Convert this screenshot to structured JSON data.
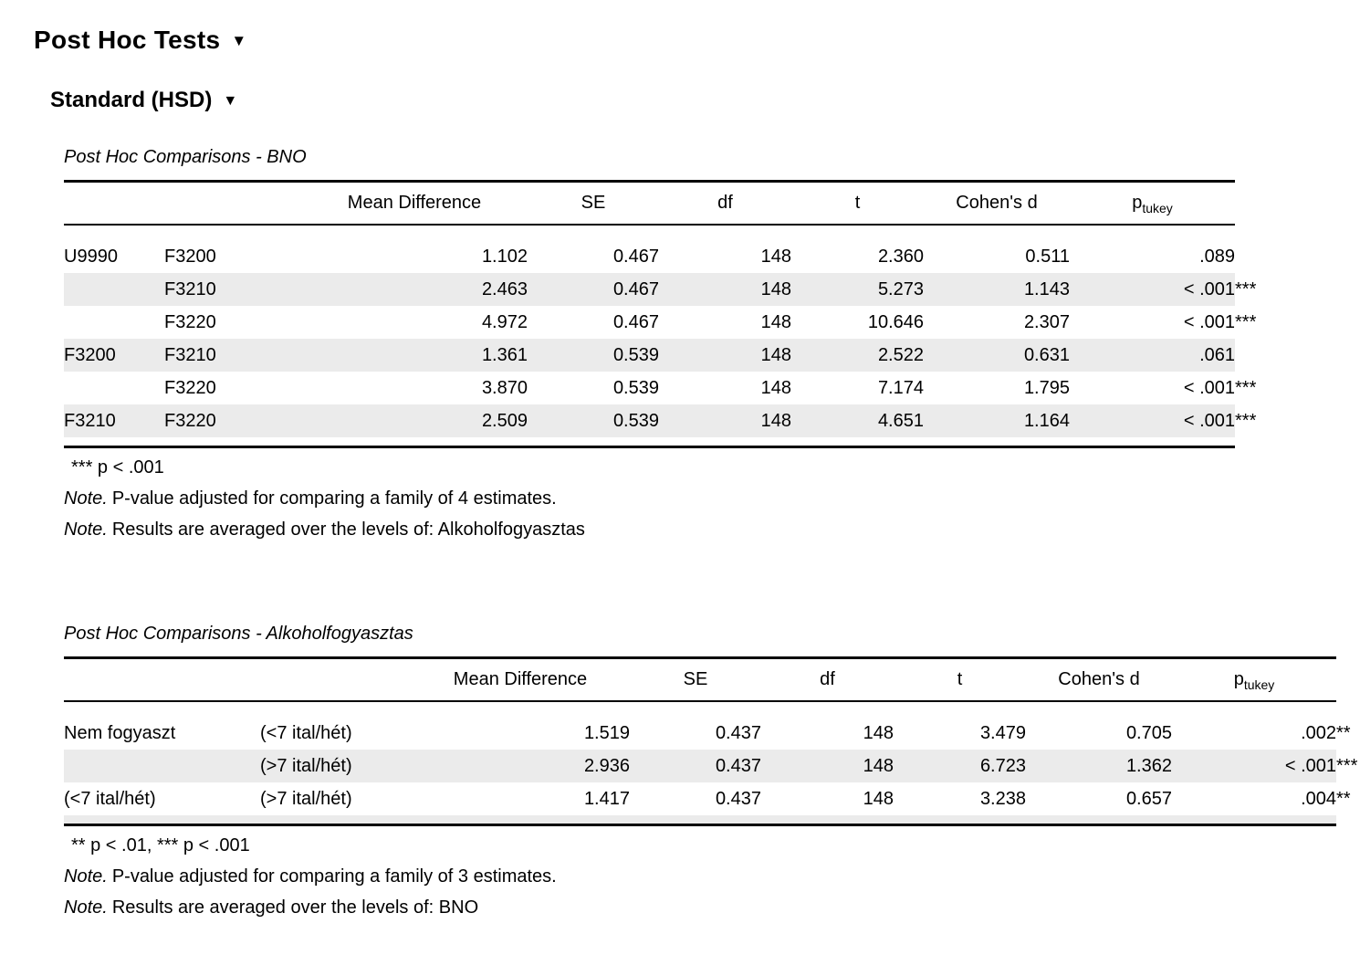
{
  "ui": {
    "caret": "▼"
  },
  "header": {
    "title": "Post Hoc Tests",
    "subtitle": "Standard (HSD)"
  },
  "colors": {
    "zebra_row": "#ebebeb",
    "text": "#000000",
    "border": "#000000"
  },
  "tables": [
    {
      "title": "Post Hoc Comparisons - BNO",
      "columns": [
        "",
        "",
        "Mean Difference",
        "SE",
        "df",
        "t",
        "Cohen's d",
        {
          "text": "p",
          "sub": "tukey"
        }
      ],
      "rows": [
        [
          "U9990",
          "F3200",
          "1.102",
          "0.467",
          "148",
          "2.360",
          "0.511",
          ".089"
        ],
        [
          "",
          "F3210",
          "2.463",
          "0.467",
          "148",
          "5.273",
          "1.143",
          "< .001***"
        ],
        [
          "",
          "F3220",
          "4.972",
          "0.467",
          "148",
          "10.646",
          "2.307",
          "< .001***"
        ],
        [
          "F3200",
          "F3210",
          "1.361",
          "0.539",
          "148",
          "2.522",
          "0.631",
          ".061"
        ],
        [
          "",
          "F3220",
          "3.870",
          "0.539",
          "148",
          "7.174",
          "1.795",
          "< .001***"
        ],
        [
          "F3210",
          "F3220",
          "2.509",
          "0.539",
          "148",
          "4.651",
          "1.164",
          "< .001***"
        ]
      ],
      "sig_note": "*** p < .001",
      "notes": [
        {
          "label": "Note.",
          "text": "P-value adjusted for comparing a family of 4 estimates."
        },
        {
          "label": "Note.",
          "text": "Results are averaged over the levels of: Alkoholfogyasztas"
        }
      ]
    },
    {
      "title": "Post Hoc Comparisons - Alkoholfogyasztas",
      "columns": [
        "",
        "",
        "Mean Difference",
        "SE",
        "df",
        "t",
        "Cohen's d",
        {
          "text": "p",
          "sub": "tukey"
        }
      ],
      "rows": [
        [
          "Nem fogyaszt",
          "(<7 ital/hét)",
          "1.519",
          "0.437",
          "148",
          "3.479",
          "0.705",
          ".002**"
        ],
        [
          "",
          "(>7 ital/hét)",
          "2.936",
          "0.437",
          "148",
          "6.723",
          "1.362",
          "< .001***"
        ],
        [
          "(<7 ital/hét)",
          "(>7 ital/hét)",
          "1.417",
          "0.437",
          "148",
          "3.238",
          "0.657",
          ".004**"
        ]
      ],
      "sig_note": "** p < .01, *** p < .001",
      "notes": [
        {
          "label": "Note.",
          "text": "P-value adjusted for comparing a family of 3 estimates."
        },
        {
          "label": "Note.",
          "text": "Results are averaged over the levels of: BNO"
        }
      ]
    }
  ]
}
